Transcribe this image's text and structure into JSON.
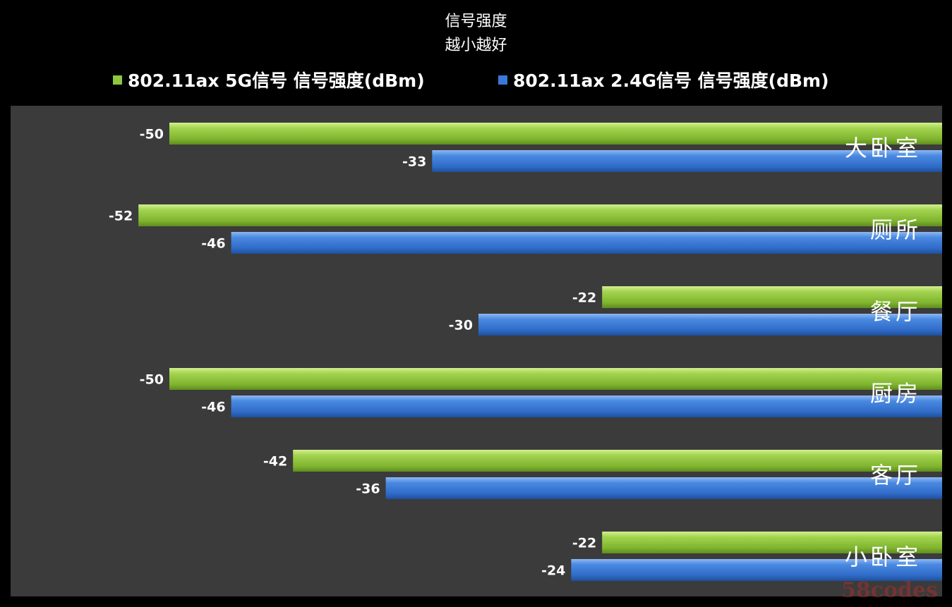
{
  "chart_data": {
    "type": "bar",
    "orientation": "horizontal",
    "title": [
      "信号强度",
      "越小越好"
    ],
    "categories": [
      "大卧室",
      "厕所",
      "餐厅",
      "厨房",
      "客厅",
      "小卧室"
    ],
    "series": [
      {
        "name": "802.11ax 5G信号 信号强度(dBm)",
        "color": "#8ec63f",
        "values": [
          -50,
          -52,
          -22,
          -50,
          -42,
          -22
        ]
      },
      {
        "name": "802.11ax 2.4G信号 信号强度(dBm)",
        "color": "#3a78d6",
        "values": [
          -33,
          -46,
          -30,
          -46,
          -36,
          -24
        ]
      }
    ],
    "xlim": [
      -55,
      0
    ],
    "axis_reversed": true,
    "gridlines": false,
    "legend_position": "top",
    "background": "#3a3a3a",
    "watermark": "58codes"
  }
}
